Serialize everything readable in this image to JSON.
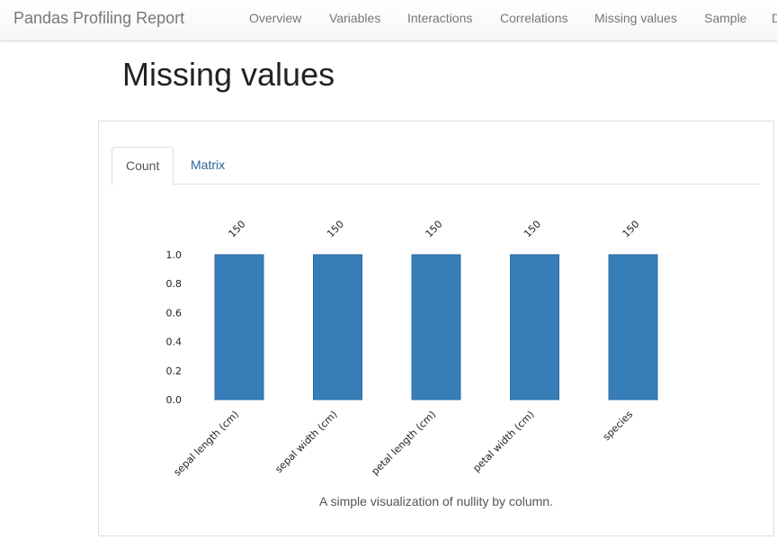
{
  "navbar": {
    "brand": "Pandas Profiling Report",
    "links": [
      "Overview",
      "Variables",
      "Interactions",
      "Correlations",
      "Missing values",
      "Sample",
      "D"
    ]
  },
  "page": {
    "title": "Missing values"
  },
  "tabs": [
    {
      "label": "Count",
      "active": true
    },
    {
      "label": "Matrix",
      "active": false
    }
  ],
  "caption": "A simple visualization of nullity by column.",
  "colors": {
    "bar": "#377eb8",
    "link": "#2a6496",
    "text": "#333333"
  },
  "chart_data": {
    "type": "bar",
    "categories": [
      "sepal length (cm)",
      "sepal width (cm)",
      "petal length (cm)",
      "petal width (cm)",
      "species"
    ],
    "values": [
      1.0,
      1.0,
      1.0,
      1.0,
      1.0
    ],
    "value_labels": [
      "150",
      "150",
      "150",
      "150",
      "150"
    ],
    "ylim": [
      0,
      1.0
    ],
    "yticks": [
      "0.0",
      "0.2",
      "0.4",
      "0.6",
      "0.8",
      "1.0"
    ],
    "grid": false,
    "title": "",
    "xlabel": "",
    "ylabel": ""
  }
}
